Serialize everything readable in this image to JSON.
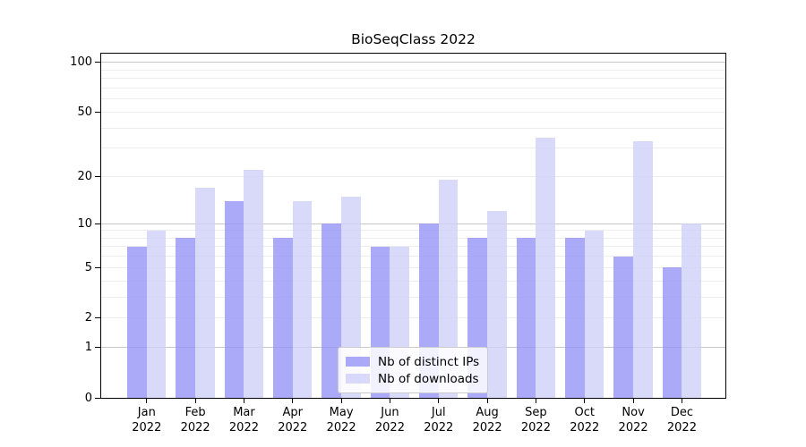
{
  "title": "BioSeqClass 2022",
  "chart_data": {
    "type": "bar",
    "title": "BioSeqClass 2022",
    "categories": [
      "Jan",
      "Feb",
      "Mar",
      "Apr",
      "May",
      "Jun",
      "Jul",
      "Aug",
      "Sep",
      "Oct",
      "Nov",
      "Dec"
    ],
    "year": "2022",
    "series": [
      {
        "name": "Nb of distinct IPs",
        "color": "rgba(149,149,246,0.8)",
        "values": [
          7,
          8,
          14,
          8,
          10,
          7,
          10,
          8,
          8,
          8,
          6,
          5
        ]
      },
      {
        "name": "Nb of downloads",
        "color": "rgba(208,208,249,0.8)",
        "values": [
          9,
          17,
          22,
          14,
          15,
          7,
          19,
          12,
          35,
          9,
          33,
          10
        ]
      }
    ],
    "y_scale": "log1p",
    "y_ticks": [
      100,
      50,
      20,
      10,
      5,
      2,
      1,
      0
    ],
    "ylim": [
      0,
      100
    ],
    "grid": "horizontal",
    "grid_major_color": "#c8c8c8",
    "grid_minor_color": "#ededed",
    "legend_position": "lower center"
  }
}
